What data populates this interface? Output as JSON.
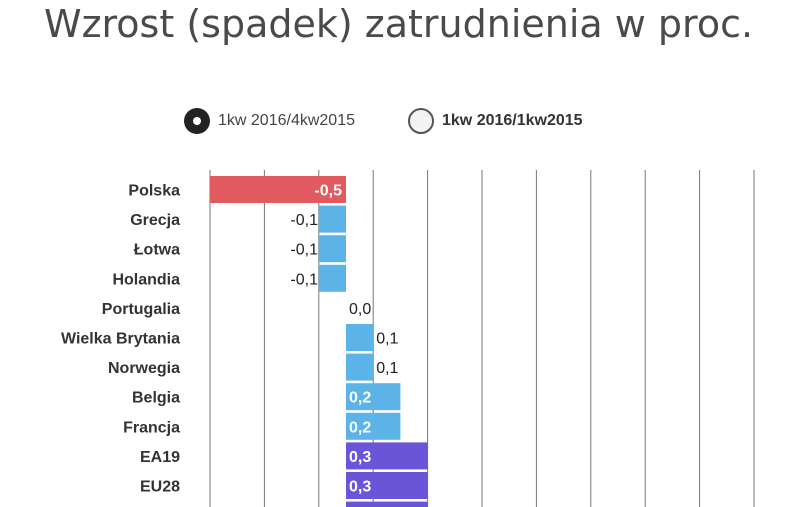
{
  "title": "Wzrost (spadek) zatrudnienia w proc.",
  "legend": {
    "items": [
      {
        "label": "1kw 2016/4kw2015",
        "selected": true
      },
      {
        "label": "1kw 2016/1kw2015",
        "selected": false
      }
    ]
  },
  "chart_data": {
    "type": "bar",
    "orientation": "horizontal",
    "title": "Wzrost (spadek) zatrudnienia w proc.",
    "series_name": "1kw 2016/4kw2015",
    "categories": [
      "Polska",
      "Grecja",
      "Łotwa",
      "Holandia",
      "Portugalia",
      "Wielka Brytania",
      "Norwegia",
      "Belgia",
      "Francja",
      "EA19",
      "EU28"
    ],
    "values": [
      -0.5,
      -0.1,
      -0.1,
      -0.1,
      0.0,
      0.1,
      0.1,
      0.2,
      0.2,
      0.3,
      0.3
    ],
    "value_labels": [
      "-0,5",
      "-0,1",
      "-0,1",
      "-0,1",
      "0,0",
      "0,1",
      "0,1",
      "0,2",
      "0,2",
      "0,3",
      "0,3"
    ],
    "bar_colors": [
      "#e05a5f",
      "#5cb3e8",
      "#5cb3e8",
      "#5cb3e8",
      "#5cb3e8",
      "#5cb3e8",
      "#5cb3e8",
      "#5cb3e8",
      "#5cb3e8",
      "#6a55d8",
      "#6a55d8"
    ],
    "xlim": [
      -0.5,
      1.5
    ],
    "grid": true
  }
}
